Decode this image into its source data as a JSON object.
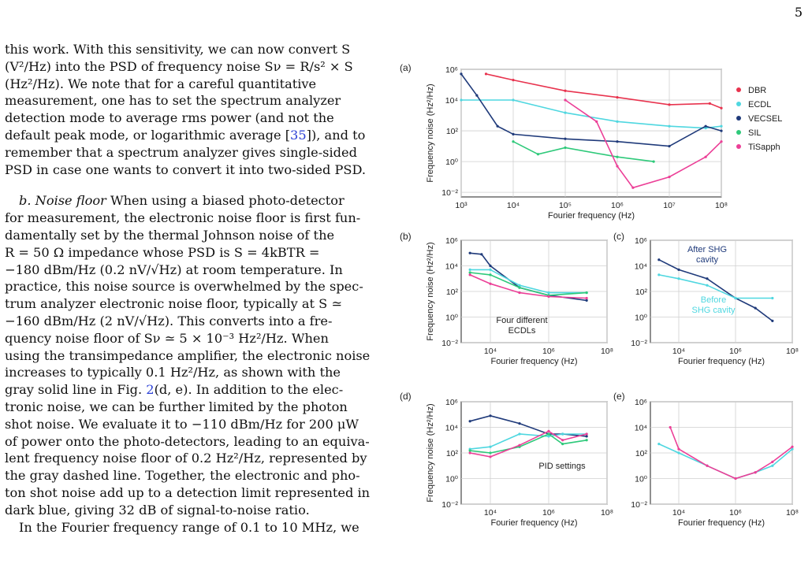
{
  "page_number": "5",
  "text": {
    "p1": [
      "this work. With this sensitivity, we can now convert S",
      "(V²/Hz) into the PSD of frequency noise Sν = R/s² × S",
      "(Hz²/Hz).   We note that for a careful quantitative",
      "measurement, one has to set the spectrum analyzer",
      "detection mode to average rms power (and not the",
      "default peak mode, or logarithmic average [",
      "35",
      "]), and to",
      "remember that a spectrum analyzer gives single-sided",
      "PSD in case one wants to convert it into two-sided PSD."
    ],
    "p2_lead": "b.  Noise floor",
    "p2": [
      "When using a biased photo-detector",
      "for measurement, the electronic noise floor is first fun-",
      "damentally set by the thermal Johnson noise of the",
      "R = 50 Ω impedance whose PSD is S = 4kBTR =",
      "−180 dBm/Hz (0.2 nV/√Hz) at room temperature. In",
      "practice, this noise source is overwhelmed by the spec-",
      "trum analyzer electronic noise floor, typically at S ≃",
      "−160 dBm/Hz (2 nV/√Hz). This converts into a fre-",
      "quency noise floor of Sν ≃ 5 × 10⁻³ Hz²/Hz.  When",
      "using the transimpedance amplifier, the electronic noise",
      "increases to typically 0.1 Hz²/Hz, as shown with the",
      "gray solid line in Fig. ",
      "2",
      "(d, e). In addition to the elec-",
      "tronic noise, we can be further limited by the photon",
      "shot noise. We evaluate it to −110 dBm/Hz for 200 μW",
      "of power onto the photo-detectors, leading to an equiva-",
      "lent frequency noise floor of 0.2 Hz²/Hz, represented by",
      "the gray dashed line. Together, the electronic and pho-",
      "ton shot noise add up to a detection limit represented in",
      "dark blue, giving 32 dB of signal-to-noise ratio."
    ],
    "p3": "In the Fourier frequency range of 0.1 to 10 MHz, we"
  },
  "figure": {
    "panel_labels": [
      "(a)",
      "(b)",
      "(c)",
      "(d)",
      "(e)"
    ],
    "ylabel": "Frequency noise (Hz²/Hz)",
    "xlabel": "Fourier frequency (Hz)",
    "legend": [
      {
        "name": "DBR",
        "color": "#e8334e"
      },
      {
        "name": "ECDL",
        "color": "#4fd7e0"
      },
      {
        "name": "VECSEL",
        "color": "#1f3a7a"
      },
      {
        "name": "SIL",
        "color": "#2ec97a"
      },
      {
        "name": "TiSapph",
        "color": "#ec3f97"
      }
    ],
    "annotations": {
      "b": "Four different ECDLs",
      "c_after": "After SHG cavity",
      "c_before": "Before SHG cavity",
      "d": "PID settings"
    }
  },
  "chart_data": [
    {
      "panel": "(a)",
      "type": "line",
      "xlabel": "Fourier frequency (Hz)",
      "ylabel": "Frequency noise (Hz²/Hz)",
      "xscale": "log",
      "yscale": "log",
      "xlim": [
        1000,
        100000000
      ],
      "ylim": [
        0.005,
        1000000
      ],
      "x_ticks": [
        "10³",
        "10⁴",
        "10⁵",
        "10⁶",
        "10⁷",
        "10⁸"
      ],
      "y_ticks": [
        "10⁻²",
        "10⁰",
        "10²",
        "10⁴",
        "10⁶"
      ],
      "grid": true,
      "legend_position": "right",
      "series": [
        {
          "name": "DBR",
          "color": "#e8334e",
          "x": [
            3000,
            10000,
            100000,
            1000000,
            10000000,
            60000000,
            100000000
          ],
          "y": [
            500000,
            200000,
            40000,
            15000,
            5000,
            6000,
            3000
          ]
        },
        {
          "name": "ECDL",
          "color": "#4fd7e0",
          "x": [
            1000,
            10000,
            100000,
            1000000,
            10000000,
            50000000,
            100000000
          ],
          "y": [
            10000,
            10000,
            1500,
            400,
            200,
            150,
            200
          ]
        },
        {
          "name": "VECSEL",
          "color": "#1f3a7a",
          "x": [
            1000,
            2000,
            5000,
            10000,
            100000,
            1000000,
            10000000,
            50000000,
            100000000
          ],
          "y": [
            500000,
            20000,
            200,
            60,
            30,
            20,
            10,
            200,
            100
          ]
        },
        {
          "name": "SIL",
          "color": "#2ec97a",
          "x": [
            10000,
            30000,
            100000,
            1000000,
            5000000
          ],
          "y": [
            20,
            3,
            8,
            2,
            1
          ]
        },
        {
          "name": "TiSapph",
          "color": "#ec3f97",
          "x": [
            100000,
            400000,
            1000000,
            2000000,
            10000000,
            50000000,
            100000000
          ],
          "y": [
            10000,
            400,
            0.5,
            0.02,
            0.1,
            2,
            20
          ]
        }
      ]
    },
    {
      "panel": "(b)",
      "type": "line",
      "xlabel": "Fourier frequency (Hz)",
      "ylabel": "Frequency noise (Hz²/Hz)",
      "xscale": "log",
      "yscale": "log",
      "xlim": [
        1000,
        100000000
      ],
      "ylim": [
        0.01,
        1000000
      ],
      "x_ticks": [
        "10⁴",
        "10⁶",
        "10⁸"
      ],
      "y_ticks": [
        "10⁻²",
        "10⁰",
        "10²",
        "10⁴",
        "10⁶"
      ],
      "annotation": "Four different ECDLs",
      "series": [
        {
          "color": "#1f3a7a",
          "x": [
            2000,
            5000,
            10000,
            100000,
            1000000,
            20000000
          ],
          "y": [
            100000,
            80000,
            10000,
            200,
            50,
            20
          ]
        },
        {
          "color": "#4fd7e0",
          "x": [
            2000,
            10000,
            100000,
            1000000,
            20000000
          ],
          "y": [
            5000,
            5000,
            300,
            80,
            80
          ]
        },
        {
          "color": "#2ec97a",
          "x": [
            2000,
            10000,
            100000,
            1000000,
            20000000
          ],
          "y": [
            3000,
            2000,
            200,
            50,
            80
          ]
        },
        {
          "color": "#ec3f97",
          "x": [
            2000,
            10000,
            100000,
            1000000,
            20000000
          ],
          "y": [
            2000,
            400,
            80,
            40,
            30
          ]
        }
      ]
    },
    {
      "panel": "(c)",
      "type": "line",
      "xlabel": "Fourier frequency (Hz)",
      "xscale": "log",
      "yscale": "log",
      "xlim": [
        1000,
        100000000
      ],
      "ylim": [
        0.01,
        1000000
      ],
      "x_ticks": [
        "10⁴",
        "10⁶",
        "10⁸"
      ],
      "y_ticks": [
        "10⁻²",
        "10⁰",
        "10²",
        "10⁴",
        "10⁶"
      ],
      "series": [
        {
          "name": "After SHG cavity",
          "color": "#1f3a7a",
          "x": [
            2000,
            10000,
            100000,
            1000000,
            5000000,
            20000000
          ],
          "y": [
            30000,
            5000,
            1000,
            30,
            5,
            0.5
          ]
        },
        {
          "name": "Before SHG cavity",
          "color": "#4fd7e0",
          "x": [
            2000,
            10000,
            100000,
            1000000,
            20000000
          ],
          "y": [
            2000,
            1000,
            300,
            30,
            30
          ]
        }
      ]
    },
    {
      "panel": "(d)",
      "type": "line",
      "xlabel": "Fourier frequency (Hz)",
      "ylabel": "Frequency noise (Hz²/Hz)",
      "xscale": "log",
      "yscale": "log",
      "xlim": [
        1000,
        100000000
      ],
      "ylim": [
        0.01,
        1000000
      ],
      "x_ticks": [
        "10⁴",
        "10⁶",
        "10⁸"
      ],
      "y_ticks": [
        "10⁻²",
        "10⁰",
        "10²",
        "10⁴",
        "10⁶"
      ],
      "annotation": "PID settings",
      "series": [
        {
          "color": "#1f3a7a",
          "x": [
            2000,
            10000,
            100000,
            1000000,
            3000000,
            20000000
          ],
          "y": [
            30000,
            80000,
            20000,
            3000,
            3000,
            2000
          ]
        },
        {
          "color": "#4fd7e0",
          "x": [
            2000,
            10000,
            100000,
            1000000,
            3000000,
            20000000
          ],
          "y": [
            200,
            300,
            3000,
            2000,
            3000,
            3000
          ]
        },
        {
          "color": "#2ec97a",
          "x": [
            2000,
            10000,
            100000,
            1000000,
            3000000,
            20000000
          ],
          "y": [
            150,
            100,
            300,
            3000,
            500,
            1000
          ]
        },
        {
          "color": "#ec3f97",
          "x": [
            2000,
            10000,
            100000,
            1000000,
            3000000,
            20000000
          ],
          "y": [
            100,
            50,
            400,
            5000,
            1000,
            3000
          ]
        }
      ]
    },
    {
      "panel": "(e)",
      "type": "line",
      "xlabel": "Fourier frequency (Hz)",
      "xscale": "log",
      "yscale": "log",
      "xlim": [
        1000,
        100000000
      ],
      "ylim": [
        0.01,
        1000000
      ],
      "x_ticks": [
        "10⁴",
        "10⁶",
        "10⁸"
      ],
      "y_ticks": [
        "10⁻²",
        "10⁰",
        "10²",
        "10⁴",
        "10⁶"
      ],
      "series": [
        {
          "color": "#4fd7e0",
          "x": [
            2000,
            10000,
            100000,
            1000000,
            5000000,
            20000000,
            100000000
          ],
          "y": [
            500,
            100,
            10,
            1,
            3,
            10,
            200
          ]
        },
        {
          "color": "#ec3f97",
          "x": [
            5000,
            10000,
            100000,
            1000000,
            5000000,
            20000000,
            100000000
          ],
          "y": [
            10000,
            200,
            10,
            1,
            3,
            20,
            300
          ]
        }
      ]
    }
  ]
}
